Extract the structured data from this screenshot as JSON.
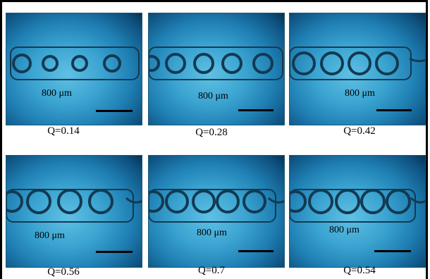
{
  "panels": [
    {
      "scale_label": "800 μm",
      "caption": "Q=0.14"
    },
    {
      "scale_label": "800 μm",
      "caption": "Q=0.28"
    },
    {
      "scale_label": "800 μm",
      "caption": "Q=0.42"
    },
    {
      "scale_label": "800 μm",
      "caption": "Q=0.56"
    },
    {
      "scale_label": "800 μm",
      "caption": "Q=0.7"
    },
    {
      "scale_label": "800 μm",
      "caption": "Q=0.54"
    }
  ],
  "colors": {
    "background_blue": "#2a8fc4",
    "channel_outline": "#123a52",
    "scale_bar": "#000000"
  }
}
